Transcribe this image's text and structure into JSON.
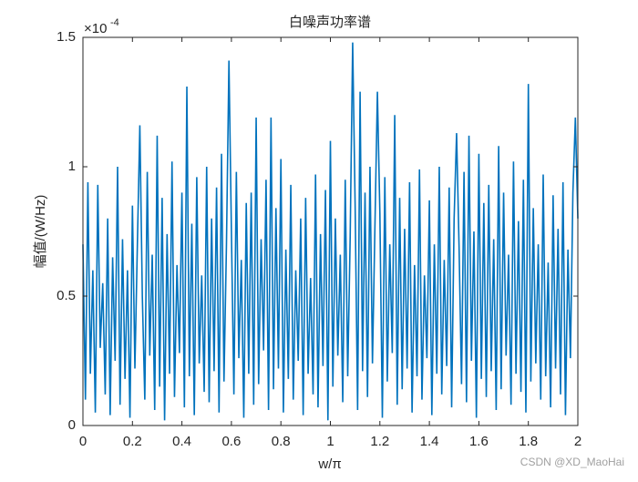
{
  "chart_data": {
    "type": "line",
    "title": "白噪声功率谱",
    "xlabel": "w/π",
    "ylabel": "幅值/(W/Hz)",
    "y_multiplier": "×10",
    "y_multiplier_exponent": "-4",
    "watermark": "CSDN @XD_MaoHai",
    "color": "#0072bd",
    "xlim": [
      0,
      2
    ],
    "xticks": [
      0,
      0.2,
      0.4,
      0.6,
      0.8,
      1,
      1.2,
      1.4,
      1.6,
      1.8,
      2
    ],
    "ylim": [
      0,
      1.5
    ],
    "yticks": [
      0,
      0.5,
      1,
      1.5
    ],
    "grid": false,
    "x": [
      0,
      0.01,
      0.02,
      0.03,
      0.04,
      0.05,
      0.06,
      0.07,
      0.08,
      0.09,
      0.1,
      0.11,
      0.12,
      0.13,
      0.14,
      0.15,
      0.16,
      0.17,
      0.18,
      0.19,
      0.2,
      0.21,
      0.22,
      0.23,
      0.24,
      0.25,
      0.26,
      0.27,
      0.28,
      0.29,
      0.3,
      0.31,
      0.32,
      0.33,
      0.34,
      0.35,
      0.36,
      0.37,
      0.38,
      0.39,
      0.4,
      0.41,
      0.42,
      0.43,
      0.44,
      0.45,
      0.46,
      0.47,
      0.48,
      0.49,
      0.5,
      0.51,
      0.52,
      0.53,
      0.54,
      0.55,
      0.56,
      0.57,
      0.58,
      0.59,
      0.6,
      0.61,
      0.62,
      0.63,
      0.64,
      0.65,
      0.66,
      0.67,
      0.68,
      0.69,
      0.7,
      0.71,
      0.72,
      0.73,
      0.74,
      0.75,
      0.76,
      0.77,
      0.78,
      0.79,
      0.8,
      0.81,
      0.82,
      0.83,
      0.84,
      0.85,
      0.86,
      0.87,
      0.88,
      0.89,
      0.9,
      0.91,
      0.92,
      0.93,
      0.94,
      0.95,
      0.96,
      0.97,
      0.98,
      0.99,
      1,
      1.01,
      1.02,
      1.03,
      1.04,
      1.05,
      1.06,
      1.07,
      1.08,
      1.09,
      1.1,
      1.11,
      1.12,
      1.13,
      1.14,
      1.15,
      1.16,
      1.17,
      1.18,
      1.19,
      1.2,
      1.21,
      1.22,
      1.23,
      1.24,
      1.25,
      1.26,
      1.27,
      1.28,
      1.29,
      1.3,
      1.31,
      1.32,
      1.33,
      1.34,
      1.35,
      1.36,
      1.37,
      1.38,
      1.39,
      1.4,
      1.41,
      1.42,
      1.43,
      1.44,
      1.45,
      1.46,
      1.47,
      1.48,
      1.49,
      1.5,
      1.51,
      1.52,
      1.53,
      1.54,
      1.55,
      1.56,
      1.57,
      1.58,
      1.59,
      1.6,
      1.61,
      1.62,
      1.63,
      1.64,
      1.65,
      1.66,
      1.67,
      1.68,
      1.69,
      1.7,
      1.71,
      1.72,
      1.73,
      1.74,
      1.75,
      1.76,
      1.77,
      1.78,
      1.79,
      1.8,
      1.81,
      1.82,
      1.83,
      1.84,
      1.85,
      1.86,
      1.87,
      1.88,
      1.89,
      1.9,
      1.91,
      1.92,
      1.93,
      1.94,
      1.95,
      1.96,
      1.97,
      1.98,
      1.99,
      2
    ],
    "values": [
      0.7,
      0.1,
      0.94,
      0.2,
      0.6,
      0.05,
      0.93,
      0.3,
      0.55,
      0.12,
      0.8,
      0.04,
      0.65,
      0.25,
      1.0,
      0.08,
      0.72,
      0.18,
      0.6,
      0.03,
      0.85,
      0.22,
      0.7,
      1.16,
      0.5,
      0.1,
      0.98,
      0.27,
      0.66,
      0.06,
      1.12,
      0.15,
      0.88,
      0.02,
      0.74,
      0.2,
      1.02,
      0.11,
      0.62,
      0.28,
      0.9,
      0.07,
      1.31,
      0.19,
      0.78,
      0.04,
      0.96,
      0.24,
      0.58,
      0.13,
      1.0,
      0.09,
      0.8,
      0.21,
      0.92,
      0.05,
      1.05,
      0.17,
      0.7,
      1.41,
      0.75,
      0.12,
      0.98,
      0.26,
      0.64,
      0.03,
      0.86,
      0.2,
      0.9,
      0.08,
      1.19,
      0.16,
      0.72,
      0.29,
      0.95,
      0.06,
      1.19,
      0.14,
      0.84,
      0.22,
      1.03,
      0.05,
      0.68,
      0.18,
      0.93,
      0.1,
      0.6,
      0.25,
      0.8,
      0.04,
      0.88,
      0.2,
      0.57,
      0.12,
      0.97,
      0.07,
      0.74,
      0.23,
      0.91,
      0.02,
      1.1,
      0.15,
      0.8,
      0.27,
      0.66,
      0.09,
      0.95,
      0.19,
      0.73,
      1.48,
      0.85,
      0.06,
      1.29,
      0.21,
      0.9,
      0.11,
      1.0,
      0.24,
      0.77,
      1.29,
      0.82,
      0.03,
      0.96,
      0.17,
      0.7,
      0.28,
      1.2,
      0.08,
      0.88,
      0.14,
      0.76,
      0.22,
      0.94,
      0.05,
      0.62,
      0.19,
      0.99,
      0.1,
      0.58,
      0.26,
      0.87,
      0.04,
      0.7,
      0.2,
      1.0,
      0.12,
      0.64,
      0.23,
      0.92,
      0.07,
      0.8,
      1.13,
      0.69,
      0.16,
      0.98,
      0.09,
      1.12,
      0.25,
      0.75,
      0.03,
      1.05,
      0.18,
      0.86,
      0.11,
      0.93,
      0.21,
      0.72,
      0.06,
      1.08,
      0.14,
      0.9,
      0.27,
      0.66,
      0.08,
      1.02,
      0.2,
      0.79,
      0.13,
      0.95,
      0.05,
      1.32,
      0.17,
      0.84,
      0.24,
      0.7,
      0.1,
      0.97,
      0.19,
      0.63,
      0.07,
      0.89,
      0.22,
      0.76,
      0.12,
      0.94,
      0.04,
      0.68,
      0.26,
      0.9,
      1.19,
      0.8
    ]
  }
}
